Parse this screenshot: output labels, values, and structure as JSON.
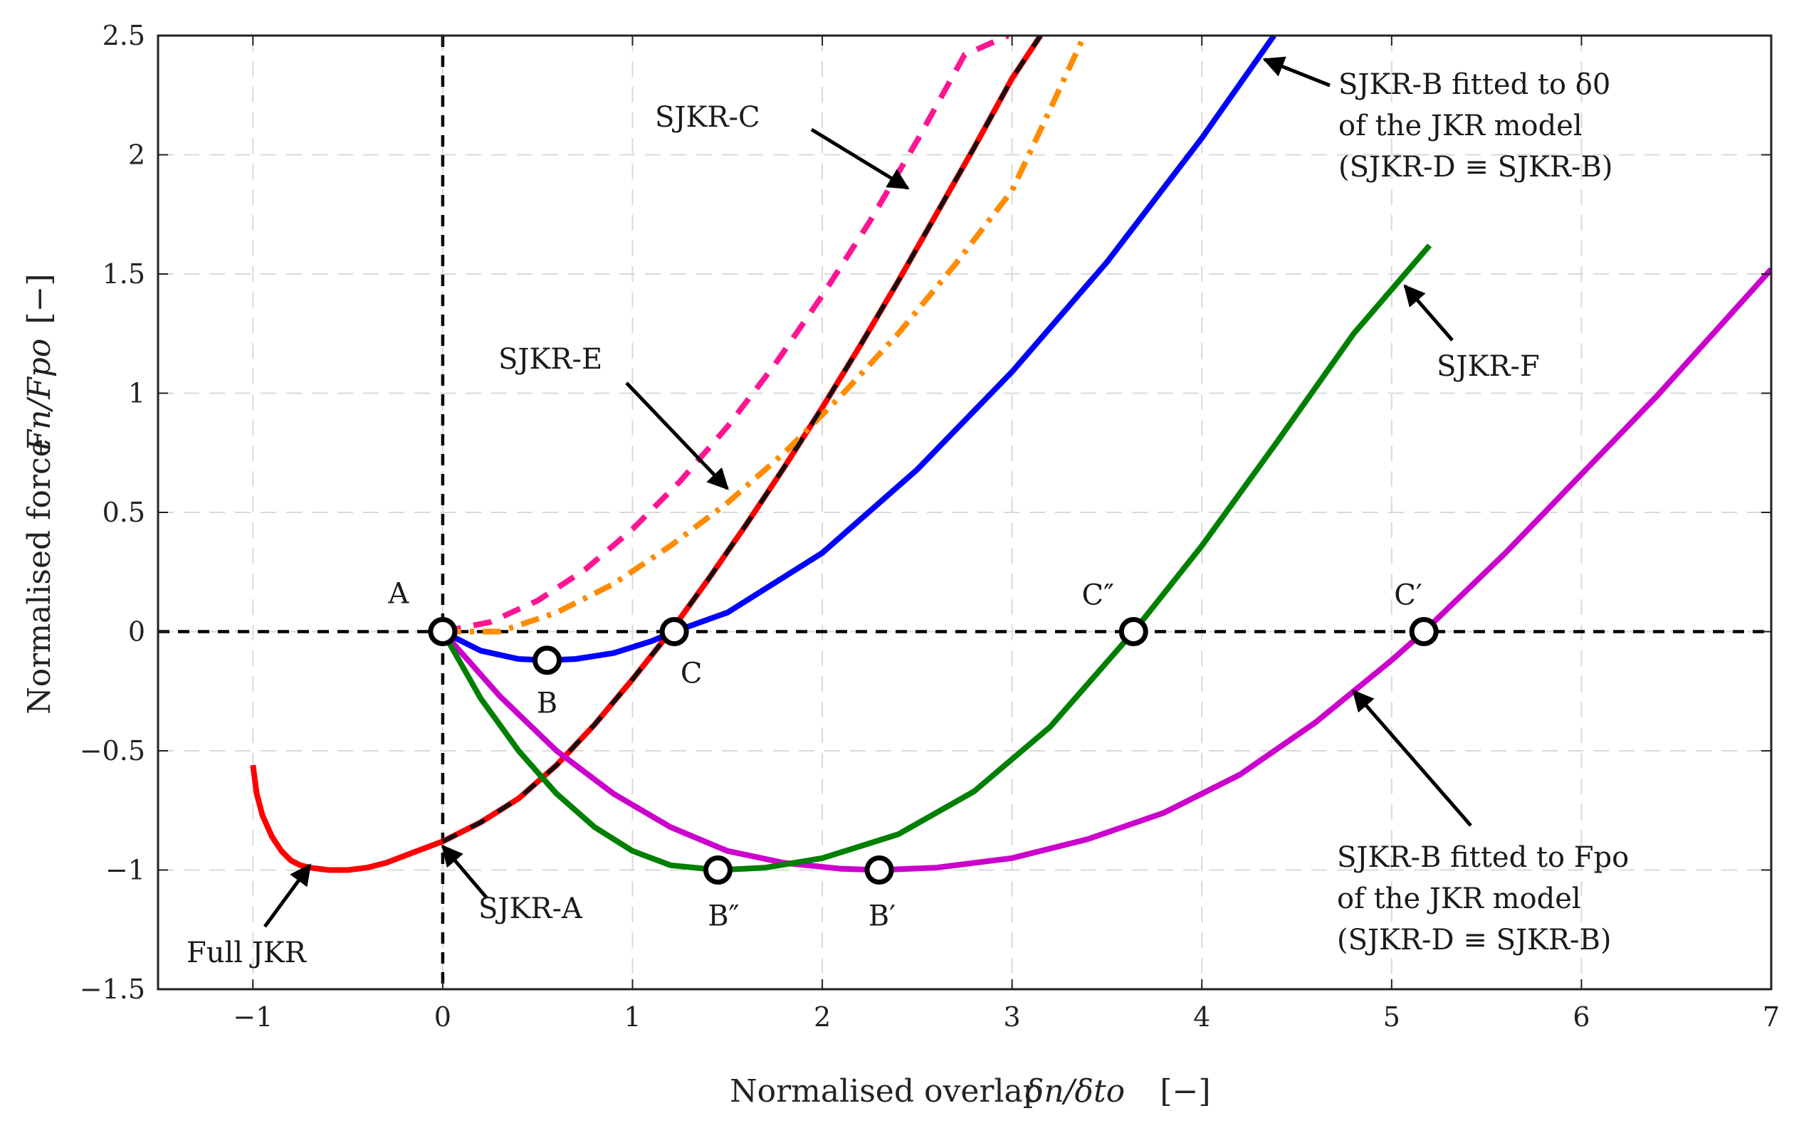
{
  "chart_data": {
    "type": "line",
    "xlabel_main": "Normalised overlap",
    "xlabel_math": "δn/δto",
    "xlabel_unit": "[−]",
    "ylabel_main": "Normalised force",
    "ylabel_math": "Fn/Fpo",
    "ylabel_unit": "[−]",
    "xlim": [
      -1.5,
      7
    ],
    "ylim": [
      -1.5,
      2.5
    ],
    "xticks": [
      -1,
      0,
      1,
      2,
      3,
      4,
      5,
      6,
      7
    ],
    "xtick_labels": [
      "−1",
      "0",
      "1",
      "2",
      "3",
      "4",
      "5",
      "6",
      "7"
    ],
    "yticks": [
      -1.5,
      -1,
      -0.5,
      0,
      0.5,
      1,
      1.5,
      2,
      2.5
    ],
    "ytick_labels": [
      "−1.5",
      "−1",
      "−0.5",
      "0",
      "0.5",
      "1",
      "1.5",
      "2",
      "2.5"
    ],
    "grid": true,
    "series": [
      {
        "name": "Full JKR",
        "color": "#ff0000",
        "style": "solid",
        "x": [
          -1.0,
          -0.98,
          -0.95,
          -0.9,
          -0.85,
          -0.8,
          -0.75,
          -0.7,
          -0.6,
          -0.5,
          -0.4,
          -0.3,
          -0.2,
          -0.1,
          0.0,
          0.2,
          0.4,
          0.6,
          0.8,
          1.0,
          1.2,
          1.4,
          1.6,
          1.8,
          2.0,
          2.2,
          2.4,
          2.6,
          2.8,
          3.0,
          3.15
        ],
        "y": [
          -0.56,
          -0.68,
          -0.77,
          -0.86,
          -0.92,
          -0.96,
          -0.98,
          -0.99,
          -1.0,
          -1.0,
          -0.99,
          -0.97,
          -0.94,
          -0.91,
          -0.88,
          -0.8,
          -0.7,
          -0.56,
          -0.39,
          -0.2,
          0.0,
          0.22,
          0.45,
          0.69,
          0.94,
          1.2,
          1.47,
          1.75,
          2.03,
          2.32,
          2.5
        ]
      },
      {
        "name": "SJKR-A",
        "color": "#111111",
        "style": "dashed",
        "x": [
          0.0,
          0.2,
          0.4,
          0.6,
          0.8,
          1.0,
          1.2,
          1.4,
          1.6,
          1.8,
          2.0,
          2.2,
          2.4,
          2.6,
          2.8,
          3.0,
          3.15
        ],
        "y": [
          -0.88,
          -0.8,
          -0.7,
          -0.56,
          -0.39,
          -0.2,
          0.0,
          0.22,
          0.45,
          0.69,
          0.94,
          1.2,
          1.47,
          1.75,
          2.03,
          2.32,
          2.5
        ]
      },
      {
        "name": "SJKR-B fitted to δ0",
        "color": "#0000ff",
        "style": "solid",
        "x": [
          0.0,
          0.2,
          0.4,
          0.55,
          0.7,
          0.9,
          1.1,
          1.22,
          1.5,
          2.0,
          2.5,
          3.0,
          3.5,
          4.0,
          4.38
        ],
        "y": [
          0.0,
          -0.08,
          -0.115,
          -0.12,
          -0.115,
          -0.09,
          -0.04,
          0.0,
          0.08,
          0.33,
          0.68,
          1.09,
          1.55,
          2.07,
          2.5
        ]
      },
      {
        "name": "SJKR-C",
        "color": "#ff1493",
        "style": "dashed",
        "x": [
          0.0,
          0.25,
          0.5,
          0.75,
          1.0,
          1.25,
          1.5,
          1.75,
          2.0,
          2.25,
          2.5,
          2.75,
          2.98
        ],
        "y": [
          0.0,
          0.04,
          0.13,
          0.26,
          0.43,
          0.63,
          0.86,
          1.12,
          1.41,
          1.72,
          2.06,
          2.42,
          2.5
        ]
      },
      {
        "name": "SJKR-E",
        "color": "#ff8c00",
        "style": "dashdot",
        "x": [
          0.0,
          0.3,
          0.6,
          0.9,
          1.2,
          1.5,
          1.8,
          2.1,
          2.4,
          2.7,
          3.0,
          3.2,
          3.38
        ],
        "y": [
          0.0,
          0.0,
          0.08,
          0.2,
          0.36,
          0.54,
          0.75,
          0.99,
          1.25,
          1.54,
          1.85,
          2.19,
          2.5
        ]
      },
      {
        "name": "SJKR-F",
        "color": "#008000",
        "style": "solid",
        "x": [
          0.0,
          0.2,
          0.4,
          0.6,
          0.8,
          1.0,
          1.2,
          1.45,
          1.7,
          2.0,
          2.4,
          2.8,
          3.2,
          3.64,
          4.0,
          4.4,
          4.8,
          5.2
        ],
        "y": [
          0.0,
          -0.28,
          -0.5,
          -0.68,
          -0.82,
          -0.92,
          -0.98,
          -1.0,
          -0.99,
          -0.95,
          -0.85,
          -0.67,
          -0.4,
          0.0,
          0.36,
          0.8,
          1.25,
          1.62
        ]
      },
      {
        "name": "SJKR-B fitted to Fpo",
        "color": "#cc00cc",
        "style": "solid",
        "x": [
          0.0,
          0.3,
          0.6,
          0.9,
          1.2,
          1.5,
          1.8,
          2.1,
          2.3,
          2.6,
          3.0,
          3.4,
          3.8,
          4.2,
          4.6,
          5.0,
          5.17,
          5.6,
          6.0,
          6.4,
          7.0
        ],
        "y": [
          0.0,
          -0.27,
          -0.5,
          -0.68,
          -0.82,
          -0.92,
          -0.97,
          -0.995,
          -1.0,
          -0.99,
          -0.95,
          -0.87,
          -0.76,
          -0.6,
          -0.38,
          -0.12,
          0.0,
          0.33,
          0.66,
          0.99,
          1.52
        ]
      }
    ],
    "points": [
      {
        "label": "A",
        "x": 0.0,
        "y": 0.0
      },
      {
        "label": "B",
        "x": 0.55,
        "y": -0.12
      },
      {
        "label": "C",
        "x": 1.22,
        "y": 0.0
      },
      {
        "label": "B″",
        "x": 1.45,
        "y": -1.0
      },
      {
        "label": "B′",
        "x": 2.3,
        "y": -1.0
      },
      {
        "label": "C″",
        "x": 3.64,
        "y": 0.0
      },
      {
        "label": "C′",
        "x": 5.17,
        "y": 0.0
      }
    ],
    "annotations": [
      {
        "lines": [
          "SJKR-C"
        ],
        "arrow_to": [
          2.45,
          1.86
        ]
      },
      {
        "lines": [
          "SJKR-E"
        ],
        "arrow_to": [
          1.5,
          0.6
        ]
      },
      {
        "lines": [
          "SJKR-B fitted to δ0",
          "of the JKR model",
          "(SJKR-D ≡ SJKR-B)"
        ],
        "arrow_to": [
          4.33,
          2.4
        ]
      },
      {
        "lines": [
          "SJKR-F"
        ],
        "arrow_to": [
          5.07,
          1.45
        ]
      },
      {
        "lines": [
          "SJKR-B fitted to Fpo",
          "of the JKR model",
          "(SJKR-D ≡ SJKR-B)"
        ],
        "arrow_to": [
          4.8,
          -0.25
        ]
      },
      {
        "lines": [
          "SJKR-A"
        ],
        "arrow_to": [
          0.0,
          -0.9
        ]
      },
      {
        "lines": [
          "Full JKR"
        ],
        "arrow_to": [
          -0.7,
          -0.98
        ]
      }
    ]
  }
}
